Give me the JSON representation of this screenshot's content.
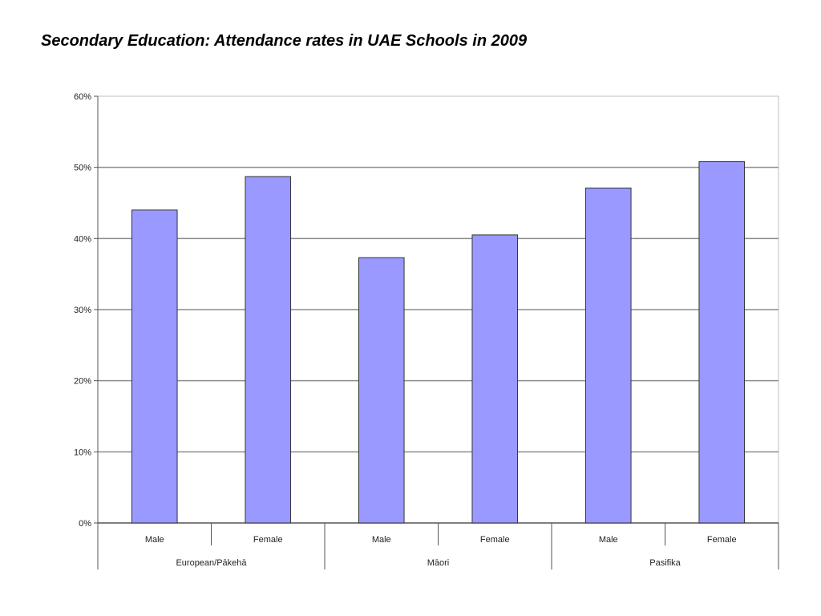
{
  "title": "Secondary Education: Attendance rates in UAE Schools in 2009",
  "chart_data": {
    "type": "bar",
    "ylim": [
      0,
      60
    ],
    "yticks": [
      "0%",
      "10%",
      "20%",
      "30%",
      "40%",
      "50%",
      "60%"
    ],
    "y_unit": "%",
    "grid": true,
    "groups": [
      {
        "label": "European/Pākehā",
        "categories": [
          "Male",
          "Female"
        ],
        "values": [
          44.0,
          48.7
        ]
      },
      {
        "label": "Māori",
        "categories": [
          "Male",
          "Female"
        ],
        "values": [
          37.3,
          40.5
        ]
      },
      {
        "label": "Pasifika",
        "categories": [
          "Male",
          "Female"
        ],
        "values": [
          47.1,
          50.8
        ]
      }
    ],
    "bar_color": "#9999ff"
  }
}
